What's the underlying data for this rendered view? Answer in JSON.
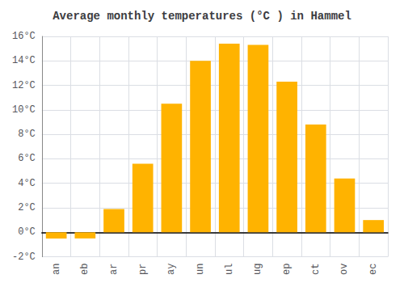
{
  "chart_data": {
    "type": "bar",
    "title": "Average monthly temperatures (°C ) in Hammel",
    "categories": [
      "an",
      "eb",
      "ar",
      "pr",
      "ay",
      "un",
      "ul",
      "ug",
      "ep",
      "ct",
      "ov",
      "ec"
    ],
    "values": [
      -0.5,
      -0.5,
      1.9,
      5.6,
      10.5,
      14.0,
      15.4,
      15.3,
      12.3,
      8.8,
      4.4,
      1.0
    ],
    "color": "#FFB300",
    "ylim": [
      -2,
      16
    ],
    "yticks": [
      {
        "value": -2,
        "label": "-2°C"
      },
      {
        "value": 0,
        "label": "0°C"
      },
      {
        "value": 2,
        "label": "2°C"
      },
      {
        "value": 4,
        "label": "4°C"
      },
      {
        "value": 6,
        "label": "6°C"
      },
      {
        "value": 8,
        "label": "8°C"
      },
      {
        "value": 10,
        "label": "10°C"
      },
      {
        "value": 12,
        "label": "12°C"
      },
      {
        "value": 14,
        "label": "14°C"
      },
      {
        "value": 16,
        "label": "16°C"
      }
    ],
    "grid": true
  }
}
